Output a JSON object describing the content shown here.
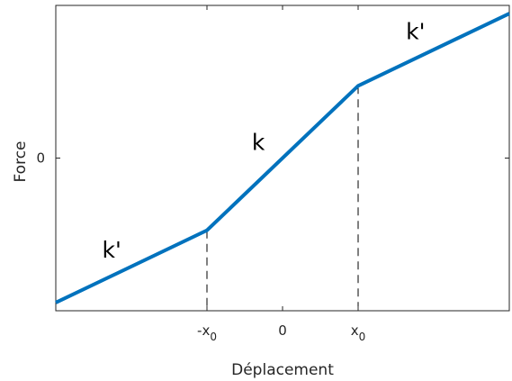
{
  "chart_data": {
    "type": "line",
    "title": "",
    "xlabel": "Déplacement",
    "ylabel": "Force",
    "xlim": [
      -1.5,
      1.5
    ],
    "ylim": [
      -1.5,
      1.5
    ],
    "grid": false,
    "x_ticks": [
      {
        "value": -0.5,
        "label": "-x",
        "sub": "0"
      },
      {
        "value": 0,
        "label": "0",
        "sub": ""
      },
      {
        "value": 0.5,
        "label": "x",
        "sub": "0"
      }
    ],
    "y_ticks": [
      {
        "value": 0,
        "label": "0"
      }
    ],
    "series": [
      {
        "color": "#0072BD",
        "x": [
          -1.5,
          -0.5,
          0.5,
          1.5
        ],
        "y": [
          -1.42,
          -0.71,
          0.71,
          1.42
        ]
      }
    ],
    "guides": [
      {
        "x": -0.5,
        "y": -0.71
      },
      {
        "x": 0.5,
        "y": 0.71
      }
    ],
    "annotations": [
      {
        "text": "k'",
        "x": -1.13,
        "y": -0.9
      },
      {
        "text": "k",
        "x": -0.16,
        "y": 0.16
      },
      {
        "text": "k'",
        "x": 0.88,
        "y": 1.25
      }
    ]
  }
}
